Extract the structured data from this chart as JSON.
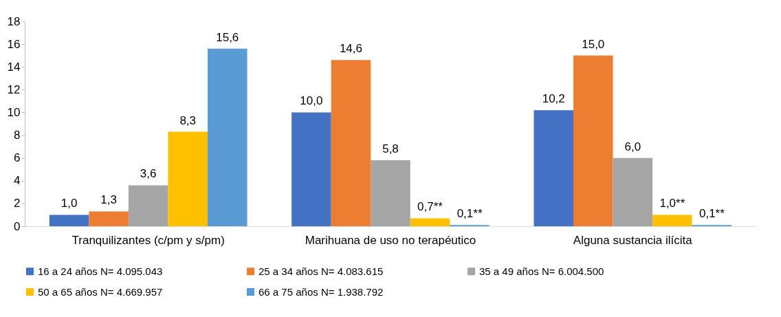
{
  "chart_data": {
    "type": "bar",
    "categories": [
      "Tranquilizantes (c/pm y s/pm)",
      "Marihuana de uso no terapéutico",
      "Alguna sustancia ilícita"
    ],
    "series": [
      {
        "name": "16 a 24 años N= 4.095.043",
        "color": "#4472c4",
        "values": [
          1.0,
          10.0,
          10.2
        ],
        "value_labels": [
          "1,0",
          "10,0",
          "10,2"
        ]
      },
      {
        "name": "25 a 34 años N= 4.083.615",
        "color": "#ed7d31",
        "values": [
          1.3,
          14.6,
          15.0
        ],
        "value_labels": [
          "1,3",
          "14,6",
          "15,0"
        ]
      },
      {
        "name": "35 a 49 años N= 6.004.500",
        "color": "#a5a5a5",
        "values": [
          3.6,
          5.8,
          6.0
        ],
        "value_labels": [
          "3,6",
          "5,8",
          "6,0"
        ]
      },
      {
        "name": "50 a 65 años N= 4.669.957",
        "color": "#ffc000",
        "values": [
          8.3,
          0.7,
          1.0
        ],
        "value_labels": [
          "8,3",
          "0,7**",
          "1,0**"
        ]
      },
      {
        "name": "66 a 75 años N= 1.938.792",
        "color": "#5b9bd5",
        "values": [
          15.6,
          0.1,
          0.1
        ],
        "value_labels": [
          "15,6",
          "0,1**",
          "0,1**"
        ]
      }
    ],
    "ylim": [
      0,
      18
    ],
    "yticks": [
      0,
      2,
      4,
      6,
      8,
      10,
      12,
      14,
      16,
      18
    ],
    "grid": false,
    "legend": "bottom"
  }
}
